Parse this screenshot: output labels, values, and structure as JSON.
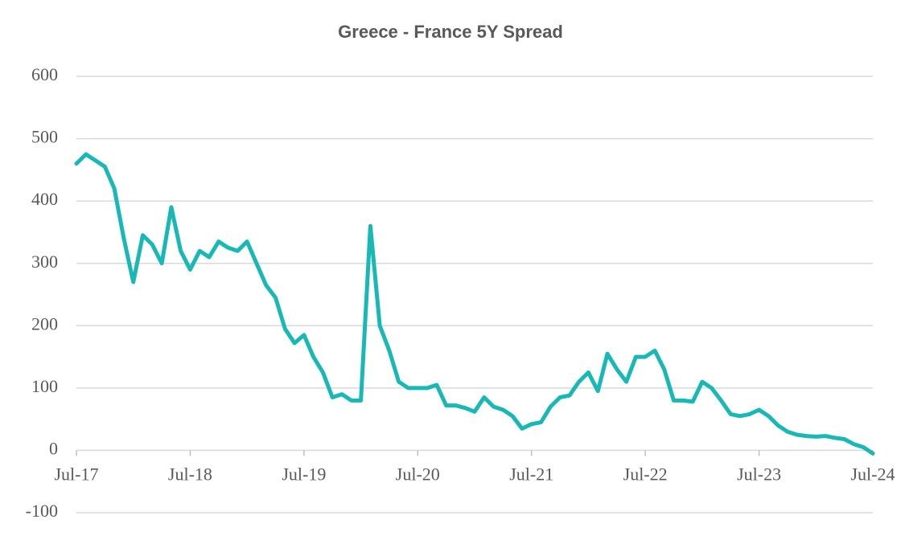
{
  "chart_data": {
    "type": "line",
    "title": "Greece - France 5Y Spread",
    "x": [
      "2017-07",
      "2017-08",
      "2017-09",
      "2017-10",
      "2017-11",
      "2017-12",
      "2018-01",
      "2018-02",
      "2018-03",
      "2018-04",
      "2018-05",
      "2018-06",
      "2018-07",
      "2018-08",
      "2018-09",
      "2018-10",
      "2018-11",
      "2018-12",
      "2019-01",
      "2019-02",
      "2019-03",
      "2019-04",
      "2019-05",
      "2019-06",
      "2019-07",
      "2019-08",
      "2019-09",
      "2019-10",
      "2019-11",
      "2019-12",
      "2020-01",
      "2020-02",
      "2020-03",
      "2020-04",
      "2020-05",
      "2020-06",
      "2020-07",
      "2020-08",
      "2020-09",
      "2020-10",
      "2020-11",
      "2020-12",
      "2021-01",
      "2021-02",
      "2021-03",
      "2021-04",
      "2021-05",
      "2021-06",
      "2021-07",
      "2021-08",
      "2021-09",
      "2021-10",
      "2021-11",
      "2021-12",
      "2022-01",
      "2022-02",
      "2022-03",
      "2022-04",
      "2022-05",
      "2022-06",
      "2022-07",
      "2022-08",
      "2022-09",
      "2022-10",
      "2022-11",
      "2022-12",
      "2023-01",
      "2023-02",
      "2023-03",
      "2023-04",
      "2023-05",
      "2023-06",
      "2023-07",
      "2023-08",
      "2023-09",
      "2023-10",
      "2023-11",
      "2023-12",
      "2024-01",
      "2024-02",
      "2024-03",
      "2024-04",
      "2024-05",
      "2024-06",
      "2024-07"
    ],
    "series": [
      {
        "name": "Greece - France 5Y Spread",
        "color": "#17b8b6",
        "values": [
          460,
          475,
          465,
          455,
          420,
          340,
          270,
          345,
          330,
          300,
          390,
          320,
          290,
          320,
          310,
          335,
          325,
          320,
          335,
          300,
          265,
          245,
          195,
          172,
          185,
          150,
          125,
          85,
          90,
          80,
          80,
          360,
          200,
          160,
          110,
          100,
          100,
          100,
          105,
          72,
          72,
          68,
          62,
          85,
          70,
          65,
          55,
          35,
          42,
          45,
          70,
          85,
          88,
          110,
          125,
          95,
          155,
          130,
          110,
          150,
          150,
          160,
          130,
          80,
          80,
          78,
          110,
          100,
          80,
          58,
          55,
          58,
          65,
          55,
          40,
          30,
          25,
          23,
          22,
          23,
          20,
          18,
          10,
          5,
          -5
        ]
      }
    ],
    "xlim": [
      "2017-07",
      "2024-07"
    ],
    "xticks": [
      {
        "value": "2017-07",
        "label": "Jul-17"
      },
      {
        "value": "2018-07",
        "label": "Jul-18"
      },
      {
        "value": "2019-07",
        "label": "Jul-19"
      },
      {
        "value": "2020-07",
        "label": "Jul-20"
      },
      {
        "value": "2021-07",
        "label": "Jul-21"
      },
      {
        "value": "2022-07",
        "label": "Jul-22"
      },
      {
        "value": "2023-07",
        "label": "Jul-23"
      },
      {
        "value": "2024-07",
        "label": "Jul-24"
      }
    ],
    "ylim": [
      -100,
      600
    ],
    "yticks": [
      -100,
      0,
      100,
      200,
      300,
      400,
      500,
      600
    ],
    "grid": true
  }
}
